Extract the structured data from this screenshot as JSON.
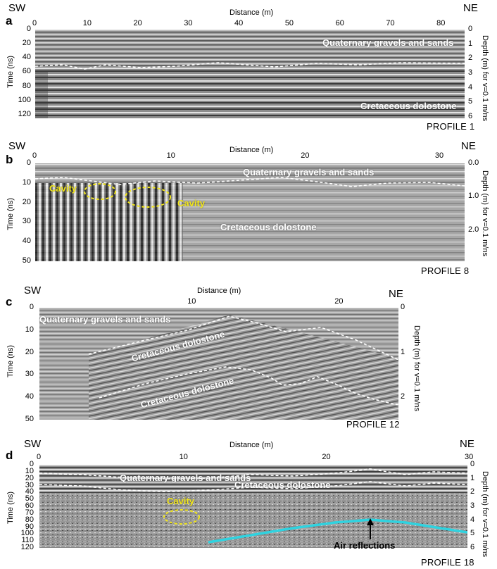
{
  "figure": {
    "common": {
      "sw": "SW",
      "ne": "NE",
      "distance_label": "Distance (m)",
      "time_label": "Time (ns)",
      "depth_label": "Depth (m) for v=0.1 m/ns",
      "colors": {
        "ellipse": "#f3e71a",
        "air": "#2fd3e0",
        "line": "#ffffff"
      }
    },
    "panels": [
      {
        "letter": "a",
        "profile": "PROFILE 1",
        "x_ticks": [
          "0",
          "10",
          "20",
          "30",
          "40",
          "50",
          "60",
          "70",
          "80"
        ],
        "x_range": [
          0,
          85
        ],
        "time_ticks": [
          "0",
          "20",
          "40",
          "60",
          "80",
          "100",
          "120"
        ],
        "time_range": [
          0,
          125
        ],
        "depth_ticks": [
          "0",
          "1",
          "2",
          "3",
          "4",
          "5",
          "6"
        ],
        "labels": [
          {
            "text": "Quaternary gravels and sands",
            "class": "white"
          },
          {
            "text": "Cretaceous dolostone",
            "class": "white"
          }
        ]
      },
      {
        "letter": "b",
        "profile": "PROFILE 8",
        "x_ticks": [
          "0",
          "10",
          "20",
          "30"
        ],
        "x_range": [
          0,
          32
        ],
        "time_ticks": [
          "0",
          "10",
          "20",
          "30",
          "40",
          "50"
        ],
        "time_range": [
          0,
          50
        ],
        "depth_ticks": [
          "0.0",
          "1.0",
          "2.0"
        ],
        "labels": [
          {
            "text": "Quaternary gravels and sands",
            "class": "white"
          },
          {
            "text": "Cavity",
            "class": "yellow"
          },
          {
            "text": "Cavity",
            "class": "yellow"
          },
          {
            "text": "Cretaceous dolostone",
            "class": "white"
          }
        ]
      },
      {
        "letter": "c",
        "profile": "PROFILE 12",
        "x_ticks": [
          "10",
          "20"
        ],
        "x_range": [
          0,
          24
        ],
        "time_ticks": [
          "0",
          "10",
          "20",
          "30",
          "40",
          "50"
        ],
        "time_range": [
          0,
          50
        ],
        "depth_ticks": [
          "0",
          "1",
          "2"
        ],
        "labels": [
          {
            "text": "Quaternary gravels and sands",
            "class": "white"
          },
          {
            "text": "Cretaceous dolostone",
            "class": "white"
          },
          {
            "text": "Cretaceous dolostone",
            "class": "white"
          }
        ]
      },
      {
        "letter": "d",
        "profile": "PROFILE 18",
        "x_ticks": [
          "0",
          "10",
          "20",
          "30"
        ],
        "x_range": [
          0,
          30
        ],
        "time_ticks": [
          "0",
          "10",
          "20",
          "30",
          "40",
          "50",
          "60",
          "70",
          "80",
          "90",
          "100",
          "110",
          "120"
        ],
        "time_range": [
          0,
          120
        ],
        "depth_ticks": [
          "0",
          "1",
          "2",
          "3",
          "4",
          "5",
          "6"
        ],
        "labels": [
          {
            "text": "Quaternary gravels and sands",
            "class": "white"
          },
          {
            "text": "Cavity",
            "class": "yellow"
          },
          {
            "text": "Cretaceous dolostone",
            "class": "white"
          },
          {
            "text": "Air reflections",
            "class": "black"
          }
        ]
      }
    ]
  }
}
